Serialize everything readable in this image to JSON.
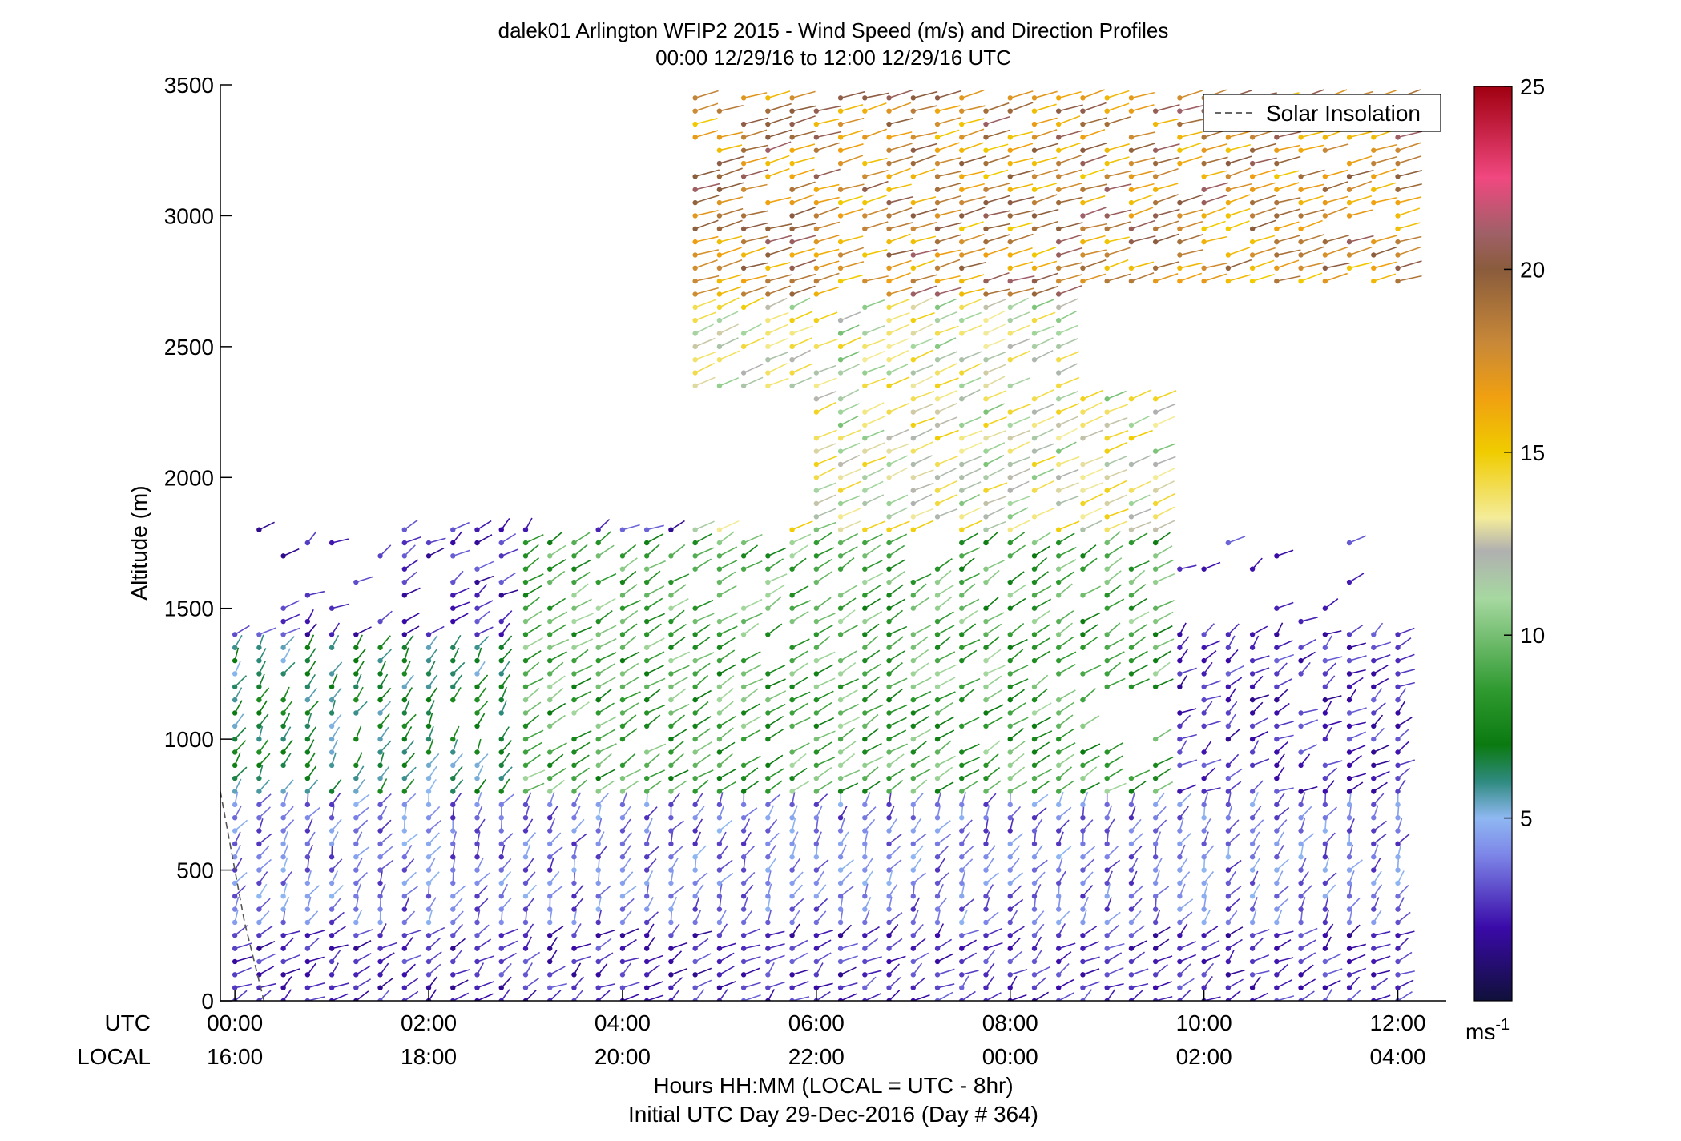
{
  "chart_data": {
    "type": "wind-profile",
    "title": "dalek01 Arlington WFIP2 2015 - Wind Speed (m/s) and Direction Profiles",
    "subtitle": "00:00 12/29/16 to 12:00 12/29/16  UTC",
    "ylabel": "Altitude (m)",
    "ylim": [
      0,
      3500
    ],
    "yticks": [
      0,
      500,
      1000,
      1500,
      2000,
      2500,
      3000,
      3500
    ],
    "xlim_hours": [
      -0.15,
      12.5
    ],
    "xticks": [
      {
        "h": 0,
        "utc": "00:00",
        "local": "16:00"
      },
      {
        "h": 2,
        "utc": "02:00",
        "local": "18:00"
      },
      {
        "h": 4,
        "utc": "04:00",
        "local": "20:00"
      },
      {
        "h": 6,
        "utc": "06:00",
        "local": "22:00"
      },
      {
        "h": 8,
        "utc": "08:00",
        "local": "00:00"
      },
      {
        "h": 10,
        "utc": "10:00",
        "local": "02:00"
      },
      {
        "h": 12,
        "utc": "12:00",
        "local": "04:00"
      }
    ],
    "xaxis_row_labels": {
      "utc": "UTC",
      "local": "LOCAL"
    },
    "xlabel": "Hours HH:MM  (LOCAL = UTC - 8hr)",
    "xlabel2": "Initial UTC Day 29-Dec-2016 (Day # 364)",
    "legend": {
      "entry": "Solar Insolation",
      "placement": "top-right"
    },
    "colorbar": {
      "ticks": [
        5,
        10,
        15,
        20,
        25
      ],
      "range": [
        0,
        25
      ],
      "unit_label": "ms",
      "unit_exponent": "-1",
      "stops": [
        {
          "v": 0,
          "c": "#10103a"
        },
        {
          "v": 2,
          "c": "#3a0aa8"
        },
        {
          "v": 4,
          "c": "#7d86e8"
        },
        {
          "v": 5,
          "c": "#8fb8f2"
        },
        {
          "v": 6,
          "c": "#2f8a7f"
        },
        {
          "v": 7,
          "c": "#0a7a10"
        },
        {
          "v": 8.5,
          "c": "#2f9a30"
        },
        {
          "v": 11,
          "c": "#a6d8a0"
        },
        {
          "v": 12.3,
          "c": "#b0b0b0"
        },
        {
          "v": 13.2,
          "c": "#f4ec9a"
        },
        {
          "v": 15,
          "c": "#f0cc00"
        },
        {
          "v": 16.5,
          "c": "#f0a010"
        },
        {
          "v": 18,
          "c": "#c88838"
        },
        {
          "v": 20,
          "c": "#8a5c3c"
        },
        {
          "v": 21,
          "c": "#a06068"
        },
        {
          "v": 22.5,
          "c": "#f04880"
        },
        {
          "v": 25,
          "c": "#a00010"
        }
      ]
    },
    "profiles": {
      "start_hour": 0,
      "end_hour": 12,
      "step_hours": 0.25,
      "height_step_m": 50,
      "description_regimes": [
        {
          "h0": 0,
          "h1": 12,
          "z0": 0,
          "z1": 300,
          "speed": [
            1.5,
            3.5
          ],
          "dir": [
            200,
            280
          ]
        },
        {
          "h0": 0,
          "h1": 12,
          "z0": 300,
          "z1": 800,
          "speed": [
            2.5,
            5
          ],
          "dir": [
            180,
            230
          ]
        },
        {
          "h0": 0,
          "h1": 3,
          "z0": 800,
          "z1": 1400,
          "speed": [
            5,
            8
          ],
          "dir": [
            190,
            220
          ]
        },
        {
          "h0": 3,
          "h1": 9.5,
          "z0": 800,
          "z1": 1800,
          "speed": [
            7,
            11
          ],
          "dir": [
            220,
            250
          ]
        },
        {
          "h0": 4.7,
          "h1": 9.5,
          "z0": 1800,
          "z1": 2700,
          "speed": [
            10,
            15
          ],
          "dir": [
            240,
            255
          ]
        },
        {
          "h0": 4.7,
          "h1": 12,
          "z0": 2700,
          "z1": 3500,
          "speed": [
            15,
            21
          ],
          "dir": [
            250,
            270
          ]
        }
      ]
    },
    "solar_insolation": {
      "points": [
        [
          -0.15,
          800
        ],
        [
          0.1,
          300
        ],
        [
          0.3,
          0
        ]
      ]
    }
  }
}
